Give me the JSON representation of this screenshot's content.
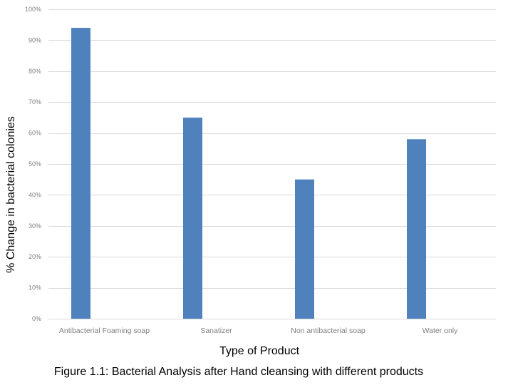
{
  "chart_data": {
    "type": "bar",
    "title": "",
    "caption": "Figure 1.1: Bacterial Analysis after Hand cleansing with different products",
    "xlabel": "Type of Product",
    "ylabel": "% Change in bacterial colonies",
    "categories": [
      "Antibacterial Foaming soap",
      "Sanatizer",
      "Non antibacterial soap",
      "Water only"
    ],
    "values": [
      94,
      65,
      45,
      58
    ],
    "ylim": [
      0,
      100
    ],
    "yticks": [
      "0%",
      "10%",
      "20%",
      "30%",
      "40%",
      "50%",
      "60%",
      "70%",
      "80%",
      "90%",
      "100%"
    ],
    "ytick_values": [
      0,
      10,
      20,
      30,
      40,
      50,
      60,
      70,
      80,
      90,
      100
    ],
    "grid": true,
    "legend": "none",
    "bar_color": "#4f81bd",
    "grid_color": "#d9d9d9"
  }
}
